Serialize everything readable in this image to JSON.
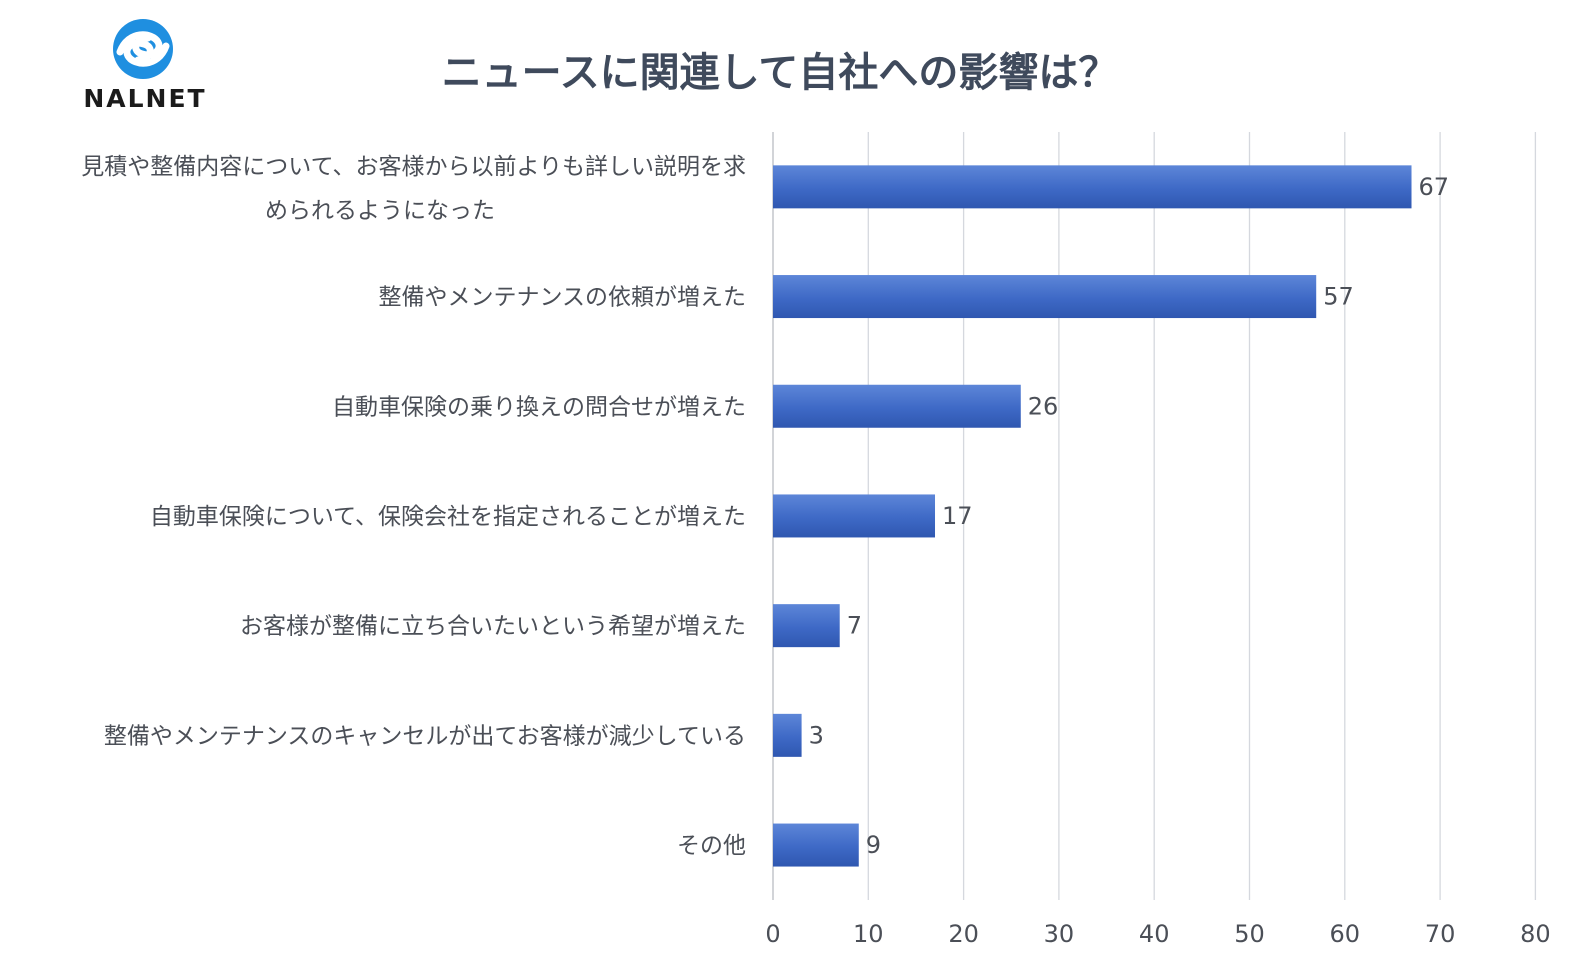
{
  "logo": {
    "text": "NALNET"
  },
  "chart_data": {
    "type": "bar",
    "orientation": "horizontal",
    "title": "ニュースに関連して自社への影響は？",
    "categories": [
      [
        "見積や整備内容について、お客様から以前よりも詳しい説明を求",
        "められるようになった"
      ],
      "整備やメンテナンスの依頼が増えた",
      "自動車保険の乗り換えの問合せが増えた",
      "自動車保険について、保険会社を指定されることが増えた",
      "お客様が整備に立ち合いたいという希望が増えた",
      "整備やメンテナンスのキャンセルが出てお客様が減少している",
      "その他"
    ],
    "values": [
      67,
      57,
      26,
      17,
      7,
      3,
      9
    ],
    "xlim": [
      0,
      80
    ],
    "xticks": [
      0,
      10,
      20,
      30,
      40,
      50,
      60,
      70,
      80
    ],
    "grid": "vertical",
    "bar_color": "#3b66c4"
  }
}
